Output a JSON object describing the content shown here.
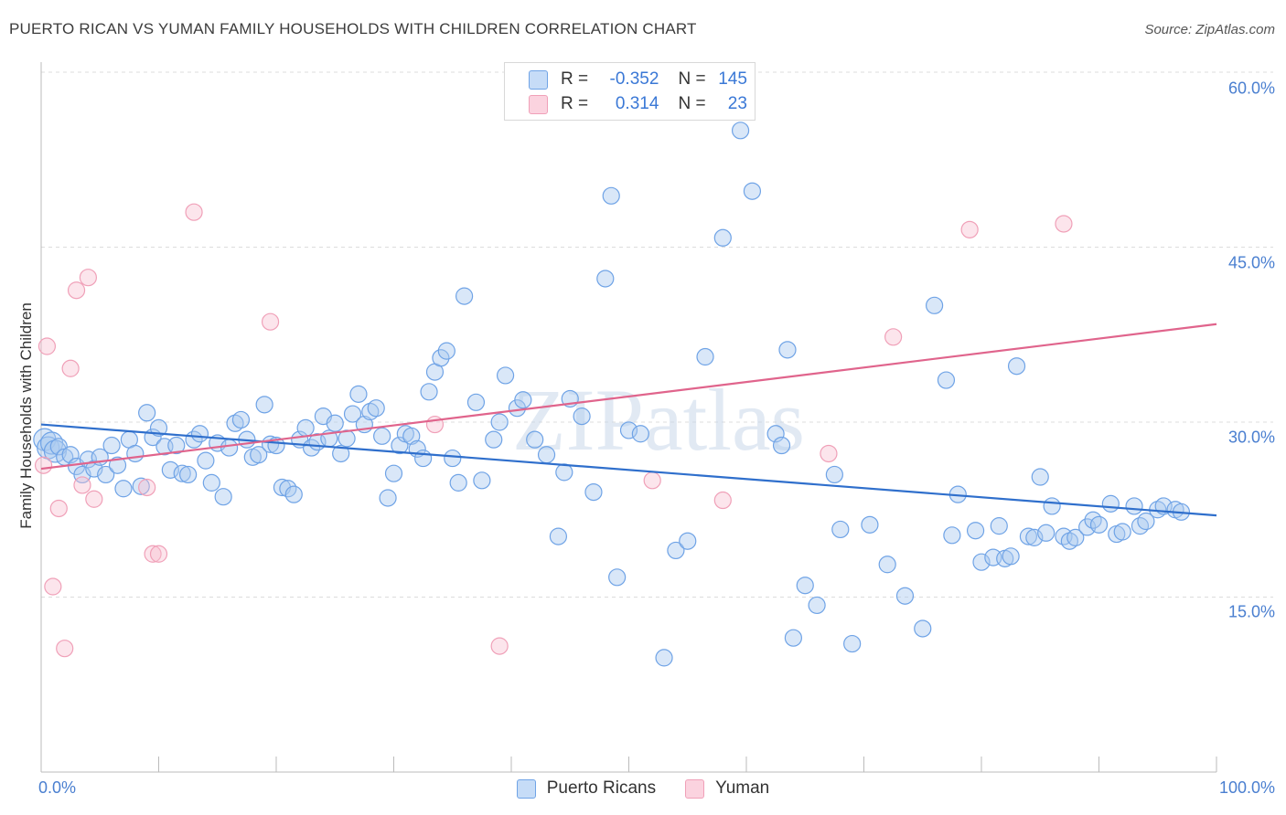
{
  "title": "PUERTO RICAN VS YUMAN FAMILY HOUSEHOLDS WITH CHILDREN CORRELATION CHART",
  "source": "Source: ZipAtlas.com",
  "watermark": "ZIPatlas",
  "legend": {
    "rows": [
      {
        "r_label": "R =",
        "r_value": "-0.352",
        "n_label": "N =",
        "n_value": "145"
      },
      {
        "r_label": "R =",
        "r_value": "0.314",
        "n_label": "N =",
        "n_value": "23"
      }
    ]
  },
  "bottom_legend": {
    "series_a": "Puerto Ricans",
    "series_b": "Yuman"
  },
  "chart_data": {
    "type": "scatter",
    "xlabel": "",
    "ylabel": "Family Households with Children",
    "xlim": [
      0,
      100
    ],
    "ylim": [
      0,
      60
    ],
    "x_tick_labels": [
      "0.0%",
      "100.0%"
    ],
    "y_ticks": [
      15,
      30,
      45,
      60
    ],
    "y_tick_labels": [
      "15.0%",
      "30.0%",
      "45.0%",
      "60.0%"
    ],
    "grid": "horizontal dashed",
    "colors": {
      "puerto_ricans": "#6fa3e6",
      "yuman": "#f0a0b8",
      "pr_line": "#2f6fcc",
      "yuman_line": "#e0648c"
    },
    "series": [
      {
        "name": "Puerto Ricans",
        "trend": {
          "x": [
            0,
            100
          ],
          "y": [
            29.8,
            22.0
          ]
        },
        "points": [
          [
            0.3,
            28.5
          ],
          [
            0.6,
            27.8
          ],
          [
            0.9,
            28.2
          ],
          [
            1.2,
            27.5
          ],
          [
            1.5,
            27.9
          ],
          [
            2.0,
            27.0
          ],
          [
            2.5,
            27.2
          ],
          [
            3.0,
            26.2
          ],
          [
            3.5,
            25.5
          ],
          [
            4.0,
            26.8
          ],
          [
            4.5,
            26.0
          ],
          [
            5.0,
            27.0
          ],
          [
            5.5,
            25.5
          ],
          [
            6.0,
            28.0
          ],
          [
            6.5,
            26.3
          ],
          [
            7.0,
            24.3
          ],
          [
            7.5,
            28.5
          ],
          [
            8.0,
            27.3
          ],
          [
            8.5,
            24.5
          ],
          [
            9.0,
            30.8
          ],
          [
            9.5,
            28.7
          ],
          [
            10.0,
            29.5
          ],
          [
            10.5,
            27.9
          ],
          [
            11.0,
            25.9
          ],
          [
            11.5,
            28.0
          ],
          [
            12.0,
            25.6
          ],
          [
            12.5,
            25.5
          ],
          [
            13.0,
            28.5
          ],
          [
            13.5,
            29.0
          ],
          [
            14.0,
            26.7
          ],
          [
            14.5,
            24.8
          ],
          [
            15.0,
            28.2
          ],
          [
            15.5,
            23.6
          ],
          [
            16.0,
            27.8
          ],
          [
            16.5,
            29.9
          ],
          [
            17.0,
            30.2
          ],
          [
            17.5,
            28.5
          ],
          [
            18.0,
            27.0
          ],
          [
            18.5,
            27.2
          ],
          [
            19.0,
            31.5
          ],
          [
            19.5,
            28.1
          ],
          [
            20.0,
            28.0
          ],
          [
            20.5,
            24.4
          ],
          [
            21.0,
            24.3
          ],
          [
            21.5,
            23.8
          ],
          [
            22.0,
            28.5
          ],
          [
            22.5,
            29.5
          ],
          [
            23.0,
            27.8
          ],
          [
            23.5,
            28.3
          ],
          [
            24.0,
            30.5
          ],
          [
            24.5,
            28.6
          ],
          [
            25.0,
            29.9
          ],
          [
            25.5,
            27.3
          ],
          [
            26.0,
            28.6
          ],
          [
            26.5,
            30.7
          ],
          [
            27.0,
            32.4
          ],
          [
            27.5,
            29.8
          ],
          [
            28.0,
            30.9
          ],
          [
            28.5,
            31.2
          ],
          [
            29.0,
            28.8
          ],
          [
            29.5,
            23.5
          ],
          [
            30.0,
            25.6
          ],
          [
            30.5,
            28.0
          ],
          [
            31.0,
            29.0
          ],
          [
            31.5,
            28.8
          ],
          [
            32.0,
            27.7
          ],
          [
            32.5,
            26.9
          ],
          [
            33.0,
            32.6
          ],
          [
            33.5,
            34.3
          ],
          [
            34.0,
            35.5
          ],
          [
            34.5,
            36.1
          ],
          [
            35.0,
            26.9
          ],
          [
            35.5,
            24.8
          ],
          [
            36.0,
            40.8
          ],
          [
            37.0,
            31.7
          ],
          [
            37.5,
            25.0
          ],
          [
            38.5,
            28.5
          ],
          [
            39.0,
            30.0
          ],
          [
            39.5,
            34.0
          ],
          [
            40.5,
            31.2
          ],
          [
            41.0,
            31.9
          ],
          [
            42.0,
            28.5
          ],
          [
            43.0,
            27.2
          ],
          [
            44.0,
            20.2
          ],
          [
            44.5,
            25.7
          ],
          [
            45.0,
            32.0
          ],
          [
            46.0,
            30.5
          ],
          [
            47.0,
            24.0
          ],
          [
            48.0,
            42.3
          ],
          [
            48.5,
            49.4
          ],
          [
            49.0,
            16.7
          ],
          [
            50.0,
            29.3
          ],
          [
            51.0,
            29.0
          ],
          [
            53.0,
            9.8
          ],
          [
            54.0,
            19.0
          ],
          [
            55.0,
            19.8
          ],
          [
            56.5,
            35.6
          ],
          [
            58.0,
            45.8
          ],
          [
            59.5,
            55.0
          ],
          [
            60.5,
            49.8
          ],
          [
            62.5,
            29.0
          ],
          [
            63.0,
            28.0
          ],
          [
            63.5,
            36.2
          ],
          [
            64.0,
            11.5
          ],
          [
            65.0,
            16.0
          ],
          [
            66.0,
            14.3
          ],
          [
            67.5,
            25.5
          ],
          [
            68.0,
            20.8
          ],
          [
            69.0,
            11.0
          ],
          [
            70.5,
            21.2
          ],
          [
            72.0,
            17.8
          ],
          [
            73.5,
            15.1
          ],
          [
            75.0,
            12.3
          ],
          [
            76.0,
            40.0
          ],
          [
            77.0,
            33.6
          ],
          [
            77.5,
            20.3
          ],
          [
            78.0,
            23.8
          ],
          [
            79.5,
            20.7
          ],
          [
            80.0,
            18.0
          ],
          [
            81.0,
            18.4
          ],
          [
            81.5,
            21.1
          ],
          [
            82.0,
            18.3
          ],
          [
            82.5,
            18.5
          ],
          [
            83.0,
            34.8
          ],
          [
            84.0,
            20.2
          ],
          [
            84.5,
            20.1
          ],
          [
            85.0,
            25.3
          ],
          [
            85.5,
            20.5
          ],
          [
            86.0,
            22.8
          ],
          [
            87.0,
            20.2
          ],
          [
            87.5,
            19.8
          ],
          [
            88.0,
            20.1
          ],
          [
            89.0,
            21.0
          ],
          [
            89.5,
            21.6
          ],
          [
            90.0,
            21.2
          ],
          [
            91.0,
            23.0
          ],
          [
            91.5,
            20.4
          ],
          [
            92.0,
            20.6
          ],
          [
            93.0,
            22.8
          ],
          [
            93.5,
            21.1
          ],
          [
            94.0,
            21.5
          ],
          [
            95.0,
            22.5
          ],
          [
            95.5,
            22.8
          ],
          [
            96.5,
            22.5
          ],
          [
            97.0,
            22.3
          ]
        ]
      },
      {
        "name": "Yuman",
        "trend": {
          "x": [
            0,
            100
          ],
          "y": [
            26.0,
            38.4
          ]
        },
        "points": [
          [
            0.2,
            26.3
          ],
          [
            0.5,
            36.5
          ],
          [
            1.0,
            15.9
          ],
          [
            1.5,
            22.6
          ],
          [
            2.0,
            10.6
          ],
          [
            2.5,
            34.6
          ],
          [
            3.0,
            41.3
          ],
          [
            3.5,
            24.6
          ],
          [
            4.0,
            42.4
          ],
          [
            4.5,
            23.4
          ],
          [
            9.0,
            24.4
          ],
          [
            9.5,
            18.7
          ],
          [
            10.0,
            18.7
          ],
          [
            13.0,
            48.0
          ],
          [
            19.5,
            38.6
          ],
          [
            33.5,
            29.8
          ],
          [
            39.0,
            10.8
          ],
          [
            52.0,
            25.0
          ],
          [
            58.0,
            23.3
          ],
          [
            67.0,
            27.3
          ],
          [
            72.5,
            37.3
          ],
          [
            79.0,
            46.5
          ],
          [
            87.0,
            47.0
          ]
        ]
      }
    ]
  }
}
